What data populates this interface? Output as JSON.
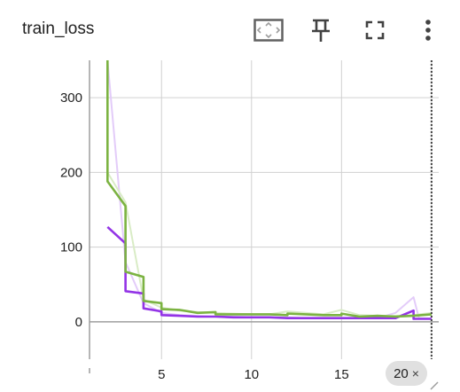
{
  "card": {
    "title": "train_loss",
    "toolbar": {
      "fit_icon": "fit-to-domain-icon",
      "pin_icon": "pin-icon",
      "fullscreen_icon": "fullscreen-icon",
      "more_icon": "more-vert-icon"
    },
    "step_chip": {
      "label": "20",
      "close_glyph": "×"
    }
  },
  "colors": {
    "purple": "#9334e6",
    "purple_light": "#e3ccf9",
    "green": "#7cb342",
    "green_light": "#d9ecc6",
    "grid": "#d0d0d0",
    "axis": "#9e9e9e",
    "cursor": "#424242"
  },
  "chart_data": {
    "type": "line",
    "title": "train_loss",
    "xlabel": "",
    "ylabel": "",
    "xlim": [
      1,
      20.4
    ],
    "ylim": [
      -50,
      350
    ],
    "x_ticks": [
      5,
      10,
      15,
      20
    ],
    "y_ticks": [
      0,
      100,
      200,
      300
    ],
    "grid": true,
    "legend": "none",
    "cursor_x": 20,
    "series": [
      {
        "color_key": "purple",
        "values": [
          [
            2,
            127
          ],
          [
            3,
            105
          ],
          [
            3,
            41
          ],
          [
            4,
            38
          ],
          [
            4,
            18
          ],
          [
            5,
            14
          ],
          [
            5,
            9
          ],
          [
            6,
            8
          ],
          [
            7,
            7
          ],
          [
            8,
            7
          ],
          [
            9,
            6
          ],
          [
            10,
            6
          ],
          [
            11,
            6
          ],
          [
            12,
            5
          ],
          [
            13,
            5
          ],
          [
            14,
            5
          ],
          [
            15,
            5
          ],
          [
            16,
            5
          ],
          [
            17,
            5
          ],
          [
            18,
            5
          ],
          [
            19,
            15
          ],
          [
            19,
            4
          ],
          [
            20,
            4
          ]
        ]
      },
      {
        "color_key": "green",
        "values": [
          [
            2,
            350
          ],
          [
            2,
            188
          ],
          [
            3,
            155
          ],
          [
            3,
            67
          ],
          [
            4,
            60
          ],
          [
            4,
            28
          ],
          [
            5,
            25
          ],
          [
            5,
            17
          ],
          [
            6,
            16
          ],
          [
            7,
            12
          ],
          [
            8,
            13
          ],
          [
            8,
            10
          ],
          [
            9,
            10
          ],
          [
            10,
            10
          ],
          [
            11,
            10
          ],
          [
            12,
            9
          ],
          [
            12,
            11
          ],
          [
            13,
            10
          ],
          [
            14,
            9
          ],
          [
            15,
            9
          ],
          [
            15,
            11
          ],
          [
            16,
            7
          ],
          [
            17,
            8
          ],
          [
            18,
            7
          ],
          [
            19,
            8
          ],
          [
            20,
            10
          ]
        ]
      },
      {
        "color_key": "purple_light",
        "values": [
          [
            2,
            350
          ],
          [
            3,
            80
          ],
          [
            4,
            25
          ],
          [
            5,
            12
          ],
          [
            6,
            9
          ],
          [
            7,
            8
          ],
          [
            8,
            7
          ],
          [
            9,
            7
          ],
          [
            10,
            6
          ],
          [
            11,
            6
          ],
          [
            12,
            6
          ],
          [
            13,
            5
          ],
          [
            14,
            5
          ],
          [
            15,
            5
          ],
          [
            16,
            5
          ],
          [
            17,
            5
          ],
          [
            18,
            12
          ],
          [
            19,
            33
          ],
          [
            19.3,
            5
          ],
          [
            20,
            4
          ]
        ]
      },
      {
        "color_key": "green_light",
        "values": [
          [
            2,
            200
          ],
          [
            3,
            160
          ],
          [
            4,
            30
          ],
          [
            5,
            19
          ],
          [
            6,
            15
          ],
          [
            7,
            13
          ],
          [
            8,
            12
          ],
          [
            9,
            11
          ],
          [
            10,
            10
          ],
          [
            11,
            10
          ],
          [
            12,
            14
          ],
          [
            13,
            12
          ],
          [
            14,
            10
          ],
          [
            15,
            16
          ],
          [
            16,
            9
          ],
          [
            17,
            8
          ],
          [
            18,
            8
          ],
          [
            19,
            9
          ],
          [
            20,
            12
          ]
        ]
      }
    ]
  }
}
